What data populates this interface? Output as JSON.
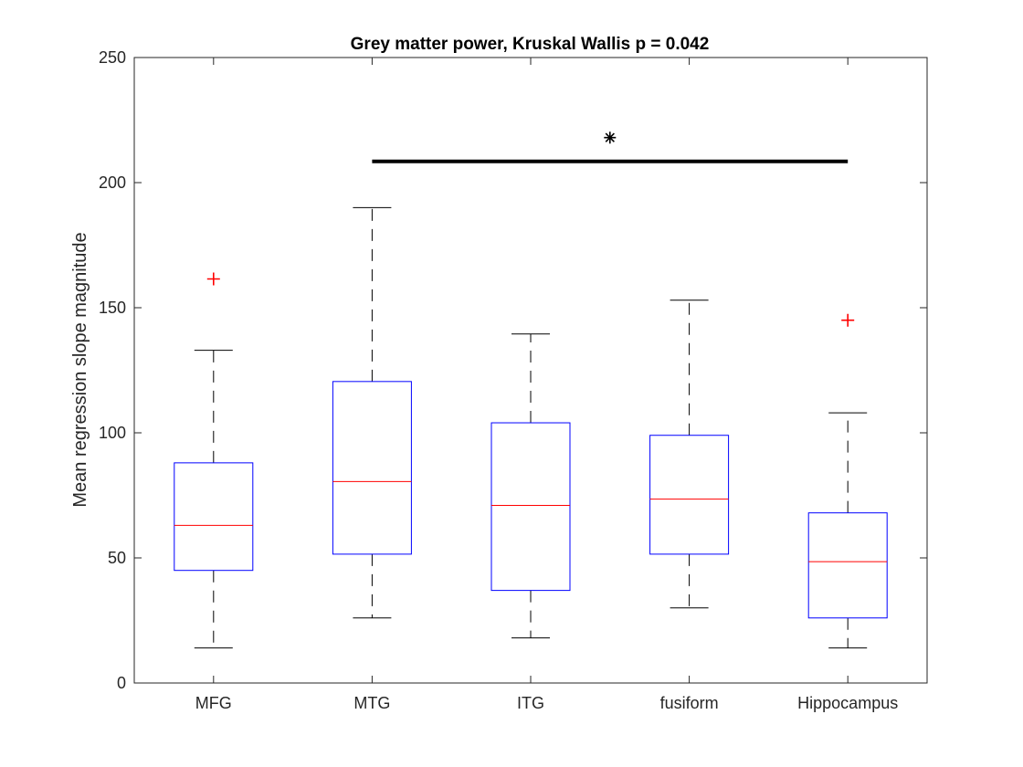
{
  "chart_data": {
    "type": "box",
    "title": "Grey matter power, Kruskal Wallis p = 0.042",
    "xlabel": "",
    "ylabel": "Mean regression slope magnitude",
    "ylim": [
      0,
      250
    ],
    "yticks": [
      0,
      50,
      100,
      150,
      200,
      250
    ],
    "ytick_labels": [
      "0",
      "50",
      "100",
      "150",
      "200",
      "250"
    ],
    "categories": [
      "MFG",
      "MTG",
      "ITG",
      "fusiform",
      "Hippocampus"
    ],
    "boxes": [
      {
        "category": "MFG",
        "whisker_low": 14,
        "q1": 45,
        "median": 63,
        "q3": 88,
        "whisker_high": 133,
        "outliers": [
          161.5
        ]
      },
      {
        "category": "MTG",
        "whisker_low": 26,
        "q1": 51.5,
        "median": 80.5,
        "q3": 120.5,
        "whisker_high": 190,
        "outliers": []
      },
      {
        "category": "ITG",
        "whisker_low": 18,
        "q1": 37,
        "median": 71,
        "q3": 104,
        "whisker_high": 139.5,
        "outliers": []
      },
      {
        "category": "fusiform",
        "whisker_low": 30,
        "q1": 51.5,
        "median": 73.5,
        "q3": 99,
        "whisker_high": 153,
        "outliers": []
      },
      {
        "category": "Hippocampus",
        "whisker_low": 14,
        "q1": 26,
        "median": 48.5,
        "q3": 68,
        "whisker_high": 108,
        "outliers": [
          145
        ]
      }
    ],
    "significance": {
      "from": "MTG",
      "to": "Hippocampus",
      "y": 208.5,
      "marker": "*",
      "marker_y": 218
    },
    "colors": {
      "box": "#0000ff",
      "median": "#ff0000",
      "whisker": "#000000",
      "outlier": "#ff0000",
      "axis": "#262626",
      "bar": "#000000"
    },
    "grid": false,
    "legend": "none"
  }
}
